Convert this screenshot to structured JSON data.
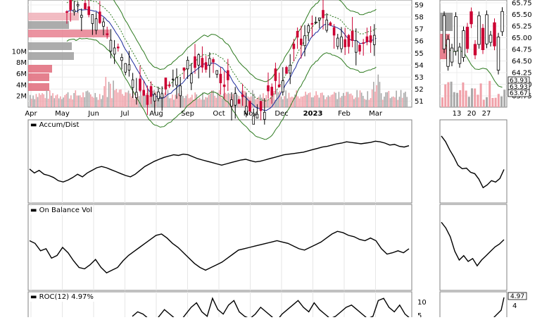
{
  "chart_data": [
    {
      "type": "candlestick",
      "panel": "price",
      "x_tick_labels": [
        "Apr",
        "May",
        "Jun",
        "Jul",
        "Aug",
        "Sep",
        "Oct",
        "Nov",
        "Dec",
        "2023",
        "Feb",
        "Mar"
      ],
      "y_right_ticks": [
        51,
        52,
        53,
        54,
        55,
        56,
        57,
        58,
        59
      ],
      "volume_ticks": [
        "2M",
        "4M",
        "6M",
        "8M",
        "10M"
      ],
      "ylim": [
        50.5,
        60
      ],
      "volume_max": 12,
      "colors": {
        "up": "#000000",
        "down": "#cc0033",
        "volume_up": "#a9a9a9",
        "volume_down": "#f0a0a8",
        "bband": "#2d7a1f",
        "mavg": "#1a2a9c",
        "profile": "#e06070",
        "profile_grey": "#8f8f8f"
      }
    },
    {
      "type": "candlestick",
      "panel": "price-zoom",
      "x_tick_labels": [
        "13",
        "20",
        "27"
      ],
      "y_right_ticks": [
        "65.75",
        "65.50",
        "65.25",
        "65.00",
        "64.75",
        "64.50",
        "64.25",
        "64.00",
        "63.75"
      ],
      "last_value_labels": [
        "63.93",
        "63.93",
        "63.67"
      ]
    },
    {
      "type": "line",
      "panel": "accum-dist",
      "title": "Accum/Dist",
      "series": [
        {
          "values": [
            48,
            42,
            46,
            40,
            38,
            35,
            30,
            28,
            31,
            35,
            40,
            36,
            42,
            46,
            50,
            52,
            50,
            47,
            44,
            41,
            38,
            36,
            40,
            46,
            52,
            56,
            60,
            63,
            66,
            68,
            70,
            69,
            71,
            70,
            67,
            64,
            62,
            60,
            58,
            56,
            54,
            56,
            58,
            60,
            62,
            63,
            61,
            59,
            60,
            62,
            64,
            66,
            68,
            70,
            71,
            72,
            73,
            74,
            76,
            78,
            80,
            82,
            83,
            85,
            87,
            88,
            90,
            89,
            88,
            87,
            88,
            89,
            91,
            90,
            88,
            85,
            86,
            83,
            82,
            84
          ]
        }
      ]
    },
    {
      "type": "line",
      "panel": "accum-dist-zoom",
      "series": [
        {
          "values": [
            92,
            84,
            72,
            62,
            50,
            45,
            46,
            40,
            38,
            30,
            18,
            22,
            28,
            26,
            31,
            44
          ]
        }
      ]
    },
    {
      "type": "line",
      "panel": "on-balance-vol",
      "title": "On Balance Vol",
      "series": [
        {
          "values": [
            70,
            66,
            55,
            58,
            44,
            48,
            60,
            52,
            40,
            30,
            28,
            34,
            42,
            30,
            22,
            26,
            30,
            40,
            48,
            54,
            60,
            66,
            72,
            78,
            80,
            74,
            66,
            60,
            52,
            44,
            36,
            30,
            26,
            30,
            34,
            38,
            44,
            50,
            56,
            58,
            60,
            62,
            64,
            66,
            68,
            70,
            68,
            66,
            62,
            58,
            56,
            60,
            64,
            68,
            74,
            80,
            84,
            82,
            78,
            76,
            72,
            70,
            74,
            70,
            58,
            50,
            52,
            55,
            52,
            58
          ]
        }
      ]
    },
    {
      "type": "line",
      "panel": "on-balance-vol-zoom",
      "series": [
        {
          "values": [
            90,
            82,
            70,
            50,
            38,
            44,
            36,
            40,
            30,
            38,
            44,
            50,
            56,
            60,
            66
          ]
        }
      ]
    },
    {
      "type": "line",
      "panel": "roc",
      "title": "ROC(12) 4.97%",
      "y_right_ticks": [
        5,
        10
      ],
      "last_value": "4.97",
      "zoom_ticks": [
        "4"
      ],
      "series": [
        {
          "values": [
            1,
            3,
            2,
            0,
            -2,
            1,
            4,
            2,
            0,
            -1,
            2,
            5,
            7,
            3,
            1,
            9,
            4,
            2,
            6,
            8,
            3,
            1,
            0,
            2,
            5,
            3,
            1,
            -1,
            2,
            4,
            6,
            8,
            5,
            3,
            7,
            4,
            2,
            0,
            1,
            3,
            5,
            6,
            4,
            2,
            0,
            1,
            8,
            9,
            5,
            3,
            6,
            2,
            0
          ]
        }
      ]
    }
  ]
}
